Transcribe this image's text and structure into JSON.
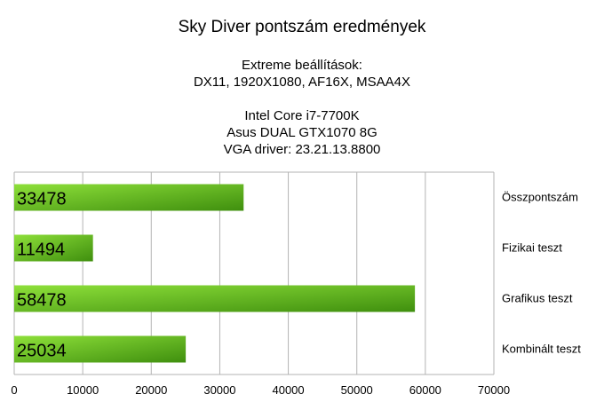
{
  "chart_data": {
    "type": "bar",
    "orientation": "horizontal",
    "title": "Sky Diver pontszám eredmények",
    "subtitle_lines": [
      "Extreme beállítások:",
      "DX11, 1920X1080, AF16X, MSAA4X",
      "",
      "Intel Core i7-7700K",
      "Asus DUAL GTX1070 8G",
      "VGA driver: 23.21.13.8800"
    ],
    "categories": [
      "Összpontszám",
      "Fizikai teszt",
      "Grafikus teszt",
      "Kombinált teszt"
    ],
    "values": [
      33478,
      11494,
      58478,
      25034
    ],
    "value_labels": [
      "33478",
      "11494",
      "58478",
      "25034"
    ],
    "xlim": [
      0,
      70000
    ],
    "x_ticks": [
      0,
      10000,
      20000,
      30000,
      40000,
      50000,
      60000,
      70000
    ],
    "x_tick_labels": [
      "0",
      "10000",
      "20000",
      "30000",
      "40000",
      "50000",
      "60000",
      "70000"
    ],
    "grid": true,
    "category_labels_position": "right",
    "colors": {
      "bar_light": "#8ee03a",
      "bar_dark": "#3f8f0e",
      "grid": "#b3b3b3"
    }
  }
}
